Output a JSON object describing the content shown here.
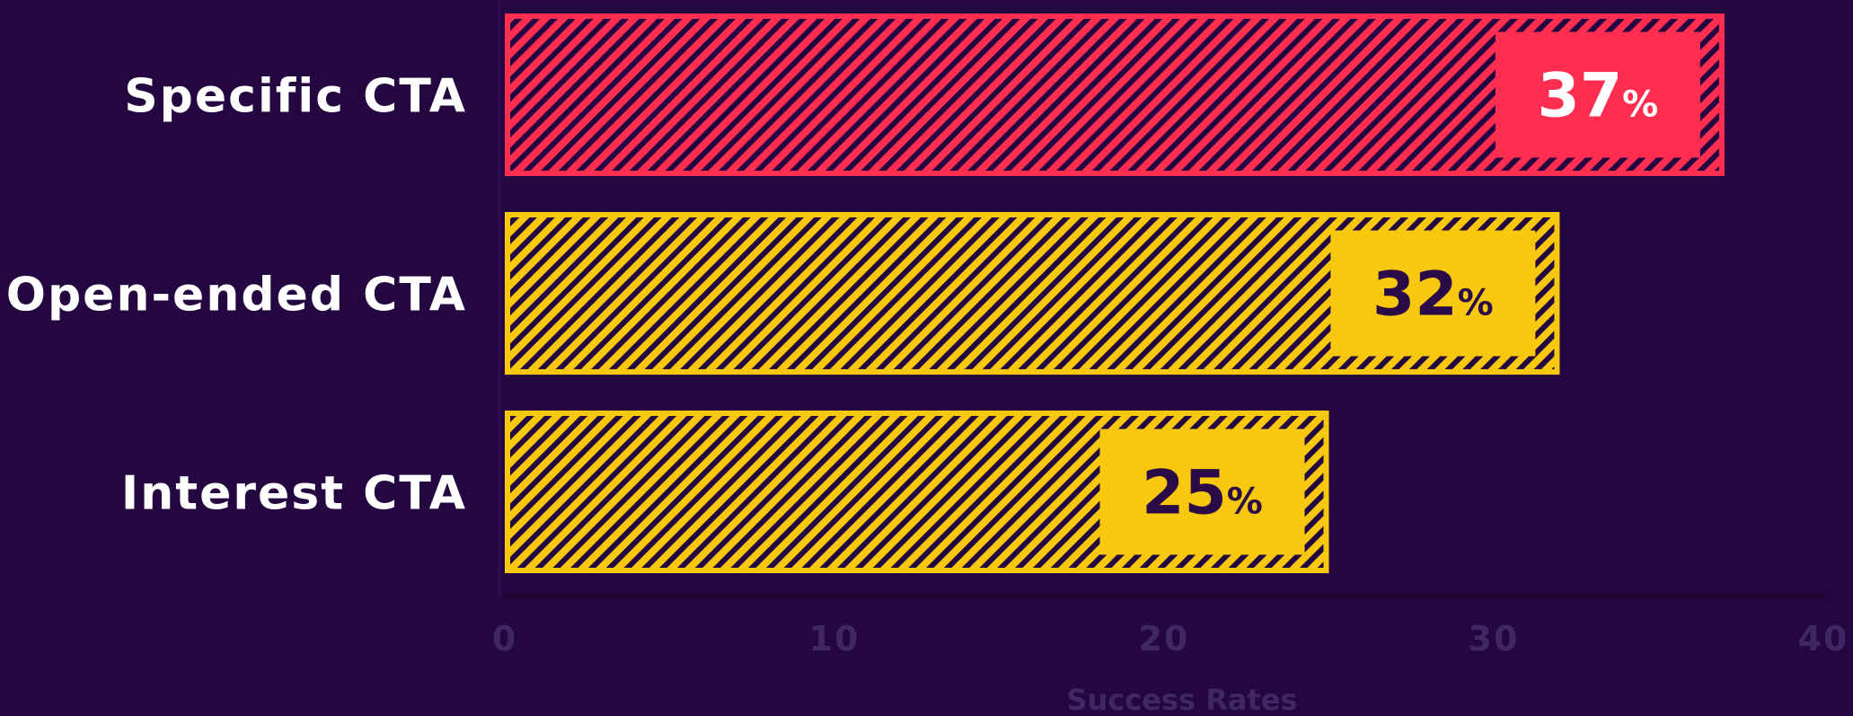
{
  "chart_data": {
    "type": "bar",
    "orientation": "horizontal",
    "categories": [
      "Specific CTA",
      "Open-ended CTA",
      "Interest CTA"
    ],
    "values": [
      37,
      32,
      25
    ],
    "data_labels": [
      "37",
      "32",
      "25"
    ],
    "value_suffix": "%",
    "xlabel": "Success Rates",
    "xlim": [
      0,
      40
    ],
    "xticks": [
      "0",
      "10",
      "20",
      "30",
      "40"
    ],
    "grid": false,
    "colors": {
      "background": "#240740",
      "highlight_bar": "#ff2d4f",
      "bar": "#f8c80e",
      "hatch": "#240740",
      "axis_text": "#3e2762",
      "label_text": "#ffffff"
    },
    "highlight_index": 0
  }
}
